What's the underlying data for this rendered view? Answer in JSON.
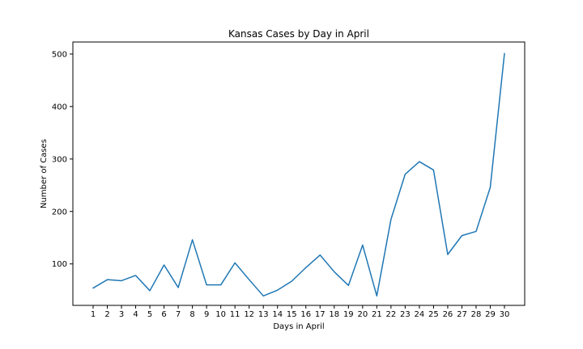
{
  "chart_data": {
    "type": "line",
    "title": "Kansas Cases by Day in April",
    "xlabel": "Days in April",
    "ylabel": "Number of Cases",
    "x": [
      "1",
      "2",
      "3",
      "4",
      "5",
      "6",
      "7",
      "8",
      "9",
      "10",
      "11",
      "12",
      "13",
      "14",
      "15",
      "16",
      "17",
      "18",
      "19",
      "20",
      "21",
      "22",
      "23",
      "24",
      "25",
      "26",
      "27",
      "28",
      "29",
      "30"
    ],
    "series": [
      {
        "values": [
          54,
          70,
          68,
          78,
          49,
          98,
          55,
          146,
          60,
          60,
          102,
          70,
          39,
          50,
          67,
          93,
          117,
          85,
          59,
          136,
          39,
          185,
          271,
          295,
          279,
          118,
          154,
          162,
          246,
          501
        ]
      }
    ],
    "ylim": [
      21,
      523
    ],
    "yticks": [
      100,
      200,
      300,
      400,
      500
    ],
    "grid": false,
    "line_color": "#1f77b4"
  }
}
